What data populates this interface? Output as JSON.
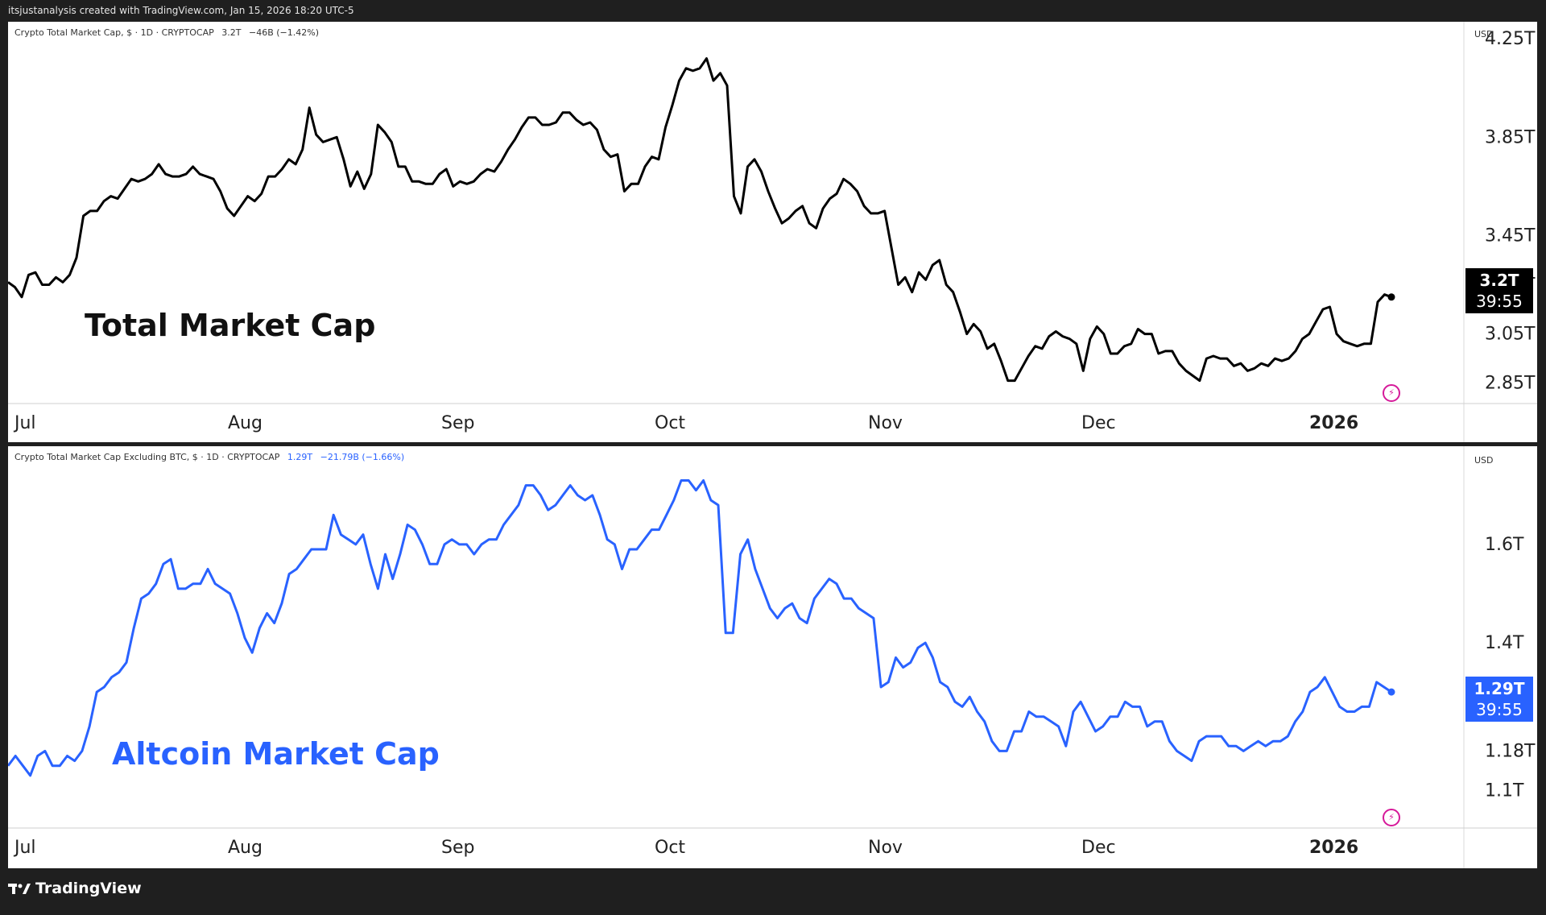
{
  "attribution": "itsjustanalysis created with TradingView.com, Jan 15, 2026 18:20 UTC-5",
  "footer": {
    "brand": "TradingView"
  },
  "colors": {
    "top_line": "#000000",
    "bottom_line": "#2962ff",
    "badge_top": "#000000",
    "badge_bottom": "#2962ff"
  },
  "icons": {
    "logo": "tradingview-logo-icon",
    "bolt": "lightning-icon"
  },
  "chart_data": [
    {
      "type": "line",
      "title": "Crypto Total Market Cap, $ · 1D · CRYPTOCAP",
      "header_value": "3.2T",
      "header_change": "−46B (−1.42%)",
      "overlay_label": "Total Market Cap",
      "currency": "USD",
      "last_value_label": "3.2T",
      "countdown": "39:55",
      "x_tick_labels": [
        "Jul",
        "Aug",
        "Sep",
        "Oct",
        "Nov",
        "Dec",
        "2026"
      ],
      "y_tick_labels": [
        "4.25T",
        "3.85T",
        "3.45T",
        "3.25T",
        "3.05T",
        "2.85T"
      ],
      "ylim": [
        2.78,
        4.28
      ],
      "series": [
        {
          "values": [
            3.26,
            3.24,
            3.2,
            3.29,
            3.3,
            3.25,
            3.25,
            3.28,
            3.26,
            3.29,
            3.36,
            3.53,
            3.55,
            3.55,
            3.59,
            3.61,
            3.6,
            3.64,
            3.68,
            3.67,
            3.68,
            3.7,
            3.74,
            3.7,
            3.69,
            3.69,
            3.7,
            3.73,
            3.7,
            3.69,
            3.68,
            3.63,
            3.56,
            3.53,
            3.57,
            3.61,
            3.59,
            3.62,
            3.69,
            3.69,
            3.72,
            3.76,
            3.74,
            3.8,
            3.97,
            3.86,
            3.83,
            3.84,
            3.85,
            3.76,
            3.65,
            3.71,
            3.64,
            3.7,
            3.9,
            3.87,
            3.83,
            3.73,
            3.73,
            3.67,
            3.67,
            3.66,
            3.66,
            3.7,
            3.72,
            3.65,
            3.67,
            3.66,
            3.67,
            3.7,
            3.72,
            3.71,
            3.75,
            3.8,
            3.84,
            3.89,
            3.93,
            3.93,
            3.9,
            3.9,
            3.91,
            3.95,
            3.95,
            3.92,
            3.9,
            3.91,
            3.88,
            3.8,
            3.77,
            3.78,
            3.63,
            3.66,
            3.66,
            3.73,
            3.77,
            3.76,
            3.89,
            3.98,
            4.08,
            4.13,
            4.12,
            4.13,
            4.17,
            4.08,
            4.11,
            4.06,
            3.61,
            3.54,
            3.73,
            3.76,
            3.71,
            3.63,
            3.56,
            3.5,
            3.52,
            3.55,
            3.57,
            3.5,
            3.48,
            3.56,
            3.6,
            3.62,
            3.68,
            3.66,
            3.63,
            3.57,
            3.54,
            3.54,
            3.55,
            3.4,
            3.25,
            3.28,
            3.22,
            3.3,
            3.27,
            3.33,
            3.35,
            3.25,
            3.22,
            3.14,
            3.05,
            3.09,
            3.06,
            2.99,
            3.01,
            2.94,
            2.86,
            2.86,
            2.91,
            2.96,
            3.0,
            2.99,
            3.04,
            3.06,
            3.04,
            3.03,
            3.01,
            2.9,
            3.03,
            3.08,
            3.05,
            2.97,
            2.97,
            3.0,
            3.01,
            3.07,
            3.05,
            3.05,
            2.97,
            2.98,
            2.98,
            2.93,
            2.9,
            2.88,
            2.86,
            2.95,
            2.96,
            2.95,
            2.95,
            2.92,
            2.93,
            2.9,
            2.91,
            2.93,
            2.92,
            2.95,
            2.94,
            2.95,
            2.98,
            3.03,
            3.05,
            3.1,
            3.15,
            3.16,
            3.05,
            3.02,
            3.01,
            3.0,
            3.01,
            3.01,
            3.18,
            3.21,
            3.2
          ]
        }
      ]
    },
    {
      "type": "line",
      "title": "Crypto Total Market Cap Excluding BTC, $ · 1D · CRYPTOCAP",
      "header_value": "1.29T",
      "header_change": "−21.79B (−1.66%)",
      "overlay_label": "Altcoin Market Cap",
      "currency": "USD",
      "last_value_label": "1.29T",
      "countdown": "39:55",
      "x_tick_labels": [
        "Jul",
        "Aug",
        "Sep",
        "Oct",
        "Nov",
        "Dec",
        "2026"
      ],
      "y_tick_labels": [
        "1.6T",
        "1.4T",
        "1.18T",
        "1.1T"
      ],
      "ylim": [
        1.03,
        1.78
      ],
      "series": [
        {
          "values": [
            1.15,
            1.17,
            1.15,
            1.13,
            1.17,
            1.18,
            1.15,
            1.15,
            1.17,
            1.16,
            1.18,
            1.23,
            1.3,
            1.31,
            1.33,
            1.34,
            1.36,
            1.43,
            1.49,
            1.5,
            1.52,
            1.56,
            1.57,
            1.51,
            1.51,
            1.52,
            1.52,
            1.55,
            1.52,
            1.51,
            1.5,
            1.46,
            1.41,
            1.38,
            1.43,
            1.46,
            1.44,
            1.48,
            1.54,
            1.55,
            1.57,
            1.59,
            1.59,
            1.59,
            1.66,
            1.62,
            1.61,
            1.6,
            1.62,
            1.56,
            1.51,
            1.58,
            1.53,
            1.58,
            1.64,
            1.63,
            1.6,
            1.56,
            1.56,
            1.6,
            1.61,
            1.6,
            1.6,
            1.58,
            1.6,
            1.61,
            1.61,
            1.64,
            1.66,
            1.68,
            1.72,
            1.72,
            1.7,
            1.67,
            1.68,
            1.7,
            1.72,
            1.7,
            1.69,
            1.7,
            1.66,
            1.61,
            1.6,
            1.55,
            1.59,
            1.59,
            1.61,
            1.63,
            1.63,
            1.66,
            1.69,
            1.73,
            1.73,
            1.71,
            1.73,
            1.69,
            1.68,
            1.42,
            1.42,
            1.58,
            1.61,
            1.55,
            1.51,
            1.47,
            1.45,
            1.47,
            1.48,
            1.45,
            1.44,
            1.49,
            1.51,
            1.53,
            1.52,
            1.49,
            1.49,
            1.47,
            1.46,
            1.45,
            1.31,
            1.32,
            1.37,
            1.35,
            1.36,
            1.39,
            1.4,
            1.37,
            1.32,
            1.31,
            1.28,
            1.27,
            1.29,
            1.26,
            1.24,
            1.2,
            1.18,
            1.18,
            1.22,
            1.22,
            1.26,
            1.25,
            1.25,
            1.24,
            1.23,
            1.19,
            1.26,
            1.28,
            1.25,
            1.22,
            1.23,
            1.25,
            1.25,
            1.28,
            1.27,
            1.27,
            1.23,
            1.24,
            1.24,
            1.2,
            1.18,
            1.17,
            1.16,
            1.2,
            1.21,
            1.21,
            1.21,
            1.19,
            1.19,
            1.18,
            1.19,
            1.2,
            1.19,
            1.2,
            1.2,
            1.21,
            1.24,
            1.26,
            1.3,
            1.31,
            1.33,
            1.3,
            1.27,
            1.26,
            1.26,
            1.27,
            1.27,
            1.32,
            1.31,
            1.3
          ]
        }
      ]
    }
  ]
}
